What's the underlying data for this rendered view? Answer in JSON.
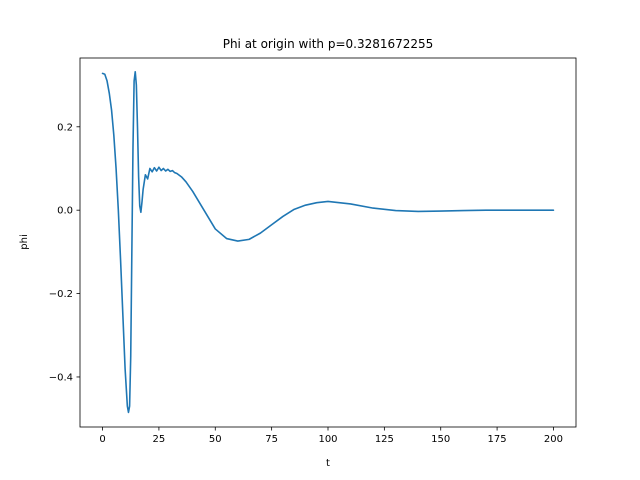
{
  "chart_data": {
    "type": "line",
    "title": "Phi at origin with p=0.3281672255",
    "xlabel": "t",
    "ylabel": "phi",
    "xlim": [
      -10,
      210
    ],
    "ylim": [
      -0.52,
      0.365
    ],
    "grid": false,
    "legend": "none",
    "x_ticks": [
      0,
      25,
      50,
      75,
      100,
      125,
      150,
      175,
      200
    ],
    "x_tick_labels": [
      "0",
      "25",
      "50",
      "75",
      "100",
      "125",
      "150",
      "175",
      "200"
    ],
    "y_ticks": [
      -0.4,
      -0.2,
      0.0,
      0.2
    ],
    "y_tick_labels": [
      "−0.4",
      "−0.2",
      "0.0",
      "0.2"
    ],
    "series": [
      {
        "color": "#1f77b4",
        "x": [
          0,
          1,
          2,
          3,
          4,
          5,
          6,
          7,
          8,
          9,
          10,
          11,
          11.5,
          12,
          12.5,
          13,
          13.5,
          14,
          14.5,
          15,
          15.5,
          16,
          16.5,
          17,
          17.5,
          18,
          19,
          20,
          21,
          22,
          23,
          24,
          25,
          26,
          27,
          28,
          29,
          30,
          31,
          32,
          33,
          35,
          37,
          40,
          45,
          50,
          55,
          60,
          65,
          70,
          75,
          80,
          85,
          90,
          95,
          100,
          110,
          120,
          130,
          140,
          150,
          160,
          170,
          180,
          190,
          200
        ],
        "y": [
          0.328,
          0.326,
          0.31,
          0.28,
          0.24,
          0.18,
          0.1,
          0.0,
          -0.12,
          -0.25,
          -0.38,
          -0.47,
          -0.485,
          -0.47,
          -0.35,
          -0.1,
          0.15,
          0.31,
          0.332,
          0.3,
          0.2,
          0.08,
          0.01,
          -0.005,
          0.02,
          0.05,
          0.085,
          0.075,
          0.1,
          0.092,
          0.102,
          0.094,
          0.103,
          0.095,
          0.1,
          0.094,
          0.098,
          0.093,
          0.095,
          0.09,
          0.088,
          0.08,
          0.068,
          0.045,
          0.0,
          -0.045,
          -0.068,
          -0.074,
          -0.07,
          -0.055,
          -0.035,
          -0.015,
          0.002,
          0.012,
          0.018,
          0.021,
          0.015,
          0.005,
          -0.001,
          -0.003,
          -0.002,
          -0.001,
          0.0,
          0.0,
          0.0,
          0.0
        ]
      }
    ]
  }
}
